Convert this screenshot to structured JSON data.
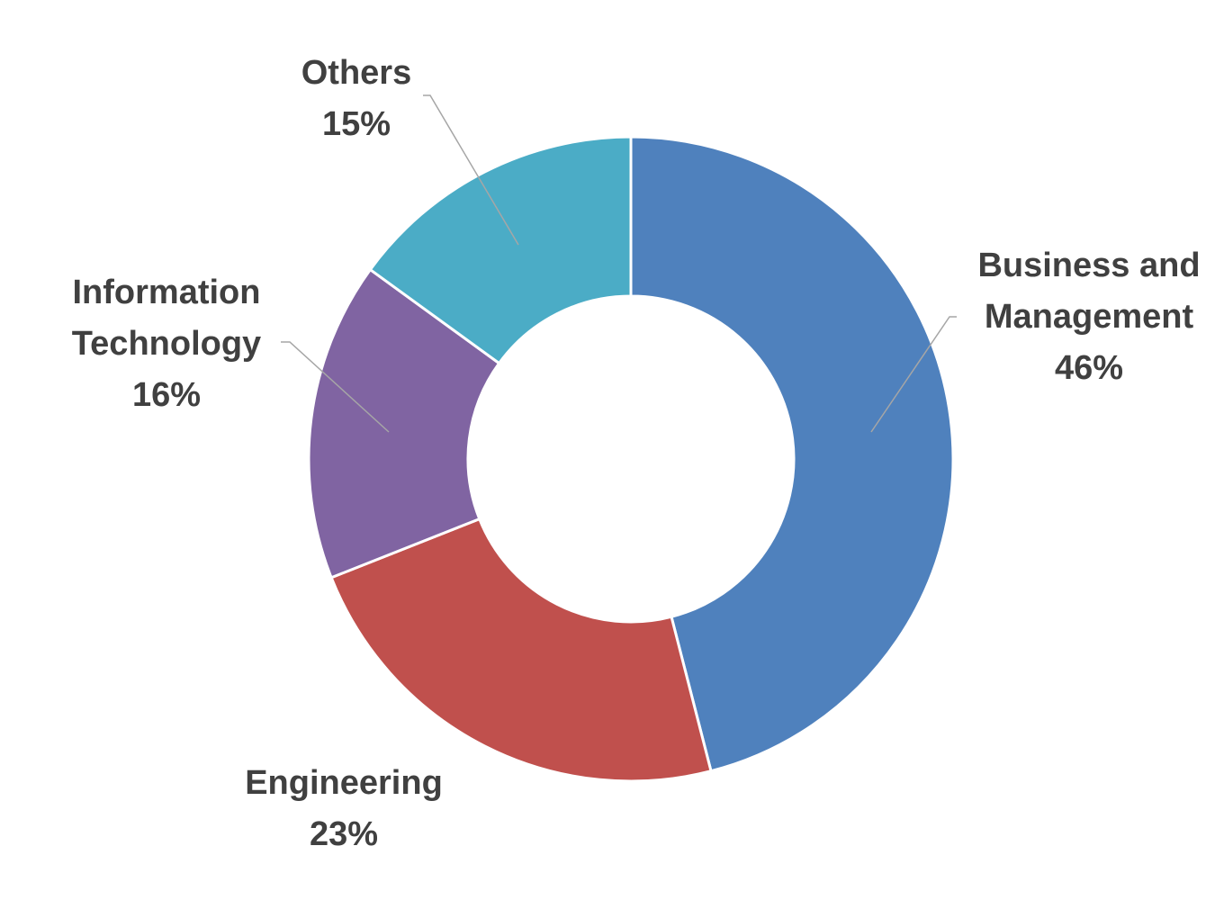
{
  "chart_data": {
    "type": "pie",
    "variant": "donut",
    "categories": [
      "Business and Management",
      "Engineering",
      "Information Technology",
      "Others"
    ],
    "values": [
      46,
      23,
      16,
      15
    ],
    "value_unit": "%",
    "label_lines": [
      [
        "Business and",
        "Management",
        "46%"
      ],
      [
        "Engineering",
        "23%"
      ],
      [
        "Information",
        "Technology",
        "16%"
      ],
      [
        "Others",
        "15%"
      ]
    ],
    "colors": [
      "#4f81bd",
      "#c0504d",
      "#8064a2",
      "#4bacc6"
    ],
    "start_angle": "12 o'clock",
    "direction": "clockwise",
    "legend": "none",
    "data_labels": "outside with leader lines"
  }
}
